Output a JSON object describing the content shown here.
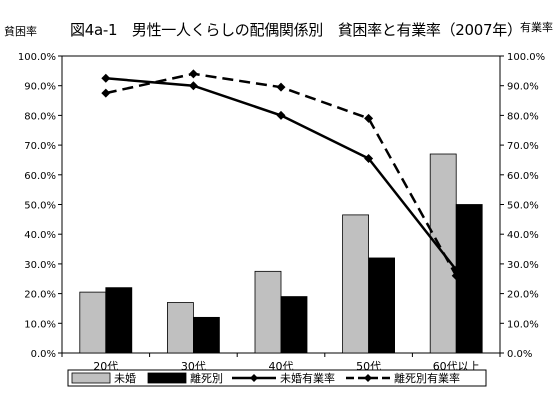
{
  "chart_data": {
    "type": "bar",
    "title": "図4a-1　男性一人くらしの配偶関係別　貧困率と有業率（2007年）",
    "ylabel_left": "貧困率",
    "ylabel_right": "有業率",
    "categories": [
      "20代",
      "30代",
      "40代",
      "50代",
      "60代以上"
    ],
    "ylim": [
      0,
      100
    ],
    "yticks": [
      "0.0%",
      "10.0%",
      "20.0%",
      "30.0%",
      "40.0%",
      "50.0%",
      "60.0%",
      "70.0%",
      "80.0%",
      "90.0%",
      "100.0%"
    ],
    "series": [
      {
        "name": "未婚",
        "type": "bar",
        "color": "#c0c0c0",
        "values": [
          20.5,
          17,
          27.5,
          46.5,
          67
        ]
      },
      {
        "name": "離死別",
        "type": "bar",
        "color": "#000000",
        "values": [
          22,
          12,
          19,
          32,
          50
        ]
      },
      {
        "name": "未婚有業率",
        "type": "line",
        "style": "solid",
        "color": "#000000",
        "values": [
          92.5,
          90,
          80,
          65.5,
          28
        ]
      },
      {
        "name": "離死別有業率",
        "type": "line",
        "style": "dashed",
        "color": "#000000",
        "values": [
          87.5,
          94,
          89.5,
          79,
          26
        ]
      }
    ],
    "legend": "bottom",
    "grid": false
  }
}
